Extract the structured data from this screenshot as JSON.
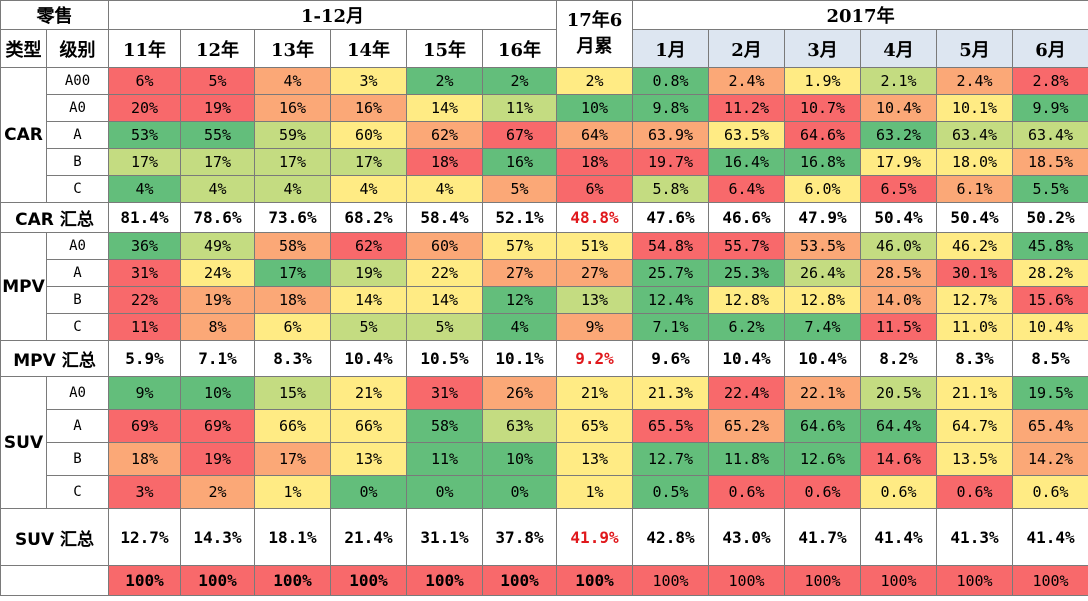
{
  "header": {
    "corner": "零售",
    "type_label": "类型",
    "level_label": "级别",
    "group_years": "1-12月",
    "group_ytd": "17年6月累",
    "group_2017": "2017年",
    "year_cols": [
      "11年",
      "12年",
      "13年",
      "14年",
      "15年",
      "16年"
    ],
    "month_cols": [
      "1月",
      "2月",
      "3月",
      "4月",
      "5月",
      "6月"
    ]
  },
  "colors": {
    "red": "#f8696b",
    "orange": "#fba877",
    "yellow": "#ffeb84",
    "lightgreen": "#c4dc81",
    "green": "#63be7b",
    "header_blue": "#dde6f1",
    "highlight_text": "#e0181c"
  },
  "chart_data": {
    "type": "table",
    "columns": [
      "11年",
      "12年",
      "13年",
      "14年",
      "15年",
      "16年",
      "17年6月累",
      "1月",
      "2月",
      "3月",
      "4月",
      "5月",
      "6月"
    ],
    "sections": [
      {
        "type": "CAR",
        "rows": [
          {
            "level": "A00",
            "values": [
              "6%",
              "5%",
              "4%",
              "3%",
              "2%",
              "2%",
              "2%",
              "0.8%",
              "2.4%",
              "1.9%",
              "2.1%",
              "2.4%",
              "2.8%"
            ],
            "colors": [
              "r",
              "r",
              "o",
              "y",
              "g",
              "g",
              "y",
              "g",
              "o",
              "y",
              "lg",
              "o",
              "r"
            ]
          },
          {
            "level": "A0",
            "values": [
              "20%",
              "19%",
              "16%",
              "16%",
              "14%",
              "11%",
              "10%",
              "9.8%",
              "11.2%",
              "10.7%",
              "10.4%",
              "10.1%",
              "9.9%"
            ],
            "colors": [
              "r",
              "r",
              "o",
              "o",
              "y",
              "lg",
              "g",
              "g",
              "r",
              "r",
              "o",
              "y",
              "g"
            ]
          },
          {
            "level": "A",
            "values": [
              "53%",
              "55%",
              "59%",
              "60%",
              "62%",
              "67%",
              "64%",
              "63.9%",
              "63.5%",
              "64.6%",
              "63.2%",
              "63.4%",
              "63.4%"
            ],
            "colors": [
              "g",
              "g",
              "lg",
              "y",
              "o",
              "r",
              "o",
              "o",
              "y",
              "r",
              "g",
              "lg",
              "lg"
            ]
          },
          {
            "level": "B",
            "values": [
              "17%",
              "17%",
              "17%",
              "17%",
              "18%",
              "16%",
              "18%",
              "19.7%",
              "16.4%",
              "16.8%",
              "17.9%",
              "18.0%",
              "18.5%"
            ],
            "colors": [
              "lg",
              "lg",
              "lg",
              "lg",
              "r",
              "g",
              "r",
              "r",
              "g",
              "g",
              "y",
              "y",
              "o"
            ]
          },
          {
            "level": "C",
            "values": [
              "4%",
              "4%",
              "4%",
              "4%",
              "4%",
              "5%",
              "6%",
              "5.8%",
              "6.4%",
              "6.0%",
              "6.5%",
              "6.1%",
              "5.5%"
            ],
            "colors": [
              "g",
              "lg",
              "lg",
              "y",
              "y",
              "o",
              "r",
              "lg",
              "r",
              "y",
              "r",
              "o",
              "g"
            ]
          }
        ],
        "total": {
          "label": "CAR 汇总",
          "values": [
            "81.4%",
            "78.6%",
            "73.6%",
            "68.2%",
            "58.4%",
            "52.1%",
            "48.8%",
            "47.6%",
            "46.6%",
            "47.9%",
            "50.4%",
            "50.4%",
            "50.2%"
          ]
        }
      },
      {
        "type": "MPV",
        "rows": [
          {
            "level": "A0",
            "values": [
              "36%",
              "49%",
              "58%",
              "62%",
              "60%",
              "57%",
              "51%",
              "54.8%",
              "55.7%",
              "53.5%",
              "46.0%",
              "46.2%",
              "45.8%"
            ],
            "colors": [
              "g",
              "lg",
              "o",
              "r",
              "o",
              "y",
              "y",
              "r",
              "r",
              "o",
              "lg",
              "y",
              "g"
            ]
          },
          {
            "level": "A",
            "values": [
              "31%",
              "24%",
              "17%",
              "19%",
              "22%",
              "27%",
              "27%",
              "25.7%",
              "25.3%",
              "26.4%",
              "28.5%",
              "30.1%",
              "28.2%"
            ],
            "colors": [
              "r",
              "y",
              "g",
              "lg",
              "y",
              "o",
              "o",
              "g",
              "g",
              "lg",
              "o",
              "r",
              "y"
            ]
          },
          {
            "level": "B",
            "values": [
              "22%",
              "19%",
              "18%",
              "14%",
              "14%",
              "12%",
              "13%",
              "12.4%",
              "12.8%",
              "12.8%",
              "14.0%",
              "12.7%",
              "15.6%"
            ],
            "colors": [
              "r",
              "o",
              "o",
              "y",
              "y",
              "g",
              "lg",
              "g",
              "y",
              "y",
              "o",
              "y",
              "r"
            ]
          },
          {
            "level": "C",
            "values": [
              "11%",
              "8%",
              "6%",
              "5%",
              "5%",
              "4%",
              "9%",
              "7.1%",
              "6.2%",
              "7.4%",
              "11.5%",
              "11.0%",
              "10.4%"
            ],
            "colors": [
              "r",
              "o",
              "y",
              "lg",
              "lg",
              "g",
              "o",
              "g",
              "g",
              "g",
              "r",
              "y",
              "y"
            ]
          }
        ],
        "total": {
          "label": "MPV 汇总",
          "values": [
            "5.9%",
            "7.1%",
            "8.3%",
            "10.4%",
            "10.5%",
            "10.1%",
            "9.2%",
            "9.6%",
            "10.4%",
            "10.4%",
            "8.2%",
            "8.3%",
            "8.5%"
          ]
        }
      },
      {
        "type": "SUV",
        "rows": [
          {
            "level": "A0",
            "values": [
              "9%",
              "10%",
              "15%",
              "21%",
              "31%",
              "26%",
              "21%",
              "21.3%",
              "22.4%",
              "22.1%",
              "20.5%",
              "21.1%",
              "19.5%"
            ],
            "colors": [
              "g",
              "g",
              "lg",
              "y",
              "r",
              "o",
              "y",
              "y",
              "r",
              "o",
              "lg",
              "y",
              "g"
            ]
          },
          {
            "level": "A",
            "values": [
              "69%",
              "69%",
              "66%",
              "66%",
              "58%",
              "63%",
              "65%",
              "65.5%",
              "65.2%",
              "64.6%",
              "64.4%",
              "64.7%",
              "65.4%"
            ],
            "colors": [
              "r",
              "r",
              "y",
              "y",
              "g",
              "lg",
              "y",
              "r",
              "o",
              "g",
              "g",
              "y",
              "o"
            ]
          },
          {
            "level": "B",
            "values": [
              "18%",
              "19%",
              "17%",
              "13%",
              "11%",
              "10%",
              "13%",
              "12.7%",
              "11.8%",
              "12.6%",
              "14.6%",
              "13.5%",
              "14.2%"
            ],
            "colors": [
              "o",
              "r",
              "o",
              "y",
              "g",
              "g",
              "y",
              "g",
              "g",
              "g",
              "r",
              "y",
              "o"
            ]
          },
          {
            "level": "C",
            "values": [
              "3%",
              "2%",
              "1%",
              "0%",
              "0%",
              "0%",
              "1%",
              "0.5%",
              "0.6%",
              "0.6%",
              "0.6%",
              "0.6%",
              "0.6%"
            ],
            "colors": [
              "r",
              "o",
              "y",
              "g",
              "g",
              "g",
              "y",
              "g",
              "r",
              "r",
              "y",
              "r",
              "y"
            ]
          }
        ],
        "total": {
          "label": "SUV 汇总",
          "values": [
            "12.7%",
            "14.3%",
            "18.1%",
            "21.4%",
            "31.1%",
            "37.8%",
            "41.9%",
            "42.8%",
            "43.0%",
            "41.7%",
            "41.4%",
            "41.3%",
            "41.4%"
          ]
        }
      }
    ],
    "grand_total": [
      "100%",
      "100%",
      "100%",
      "100%",
      "100%",
      "100%",
      "100%",
      "100%",
      "100%",
      "100%",
      "100%",
      "100%",
      "100%"
    ]
  }
}
